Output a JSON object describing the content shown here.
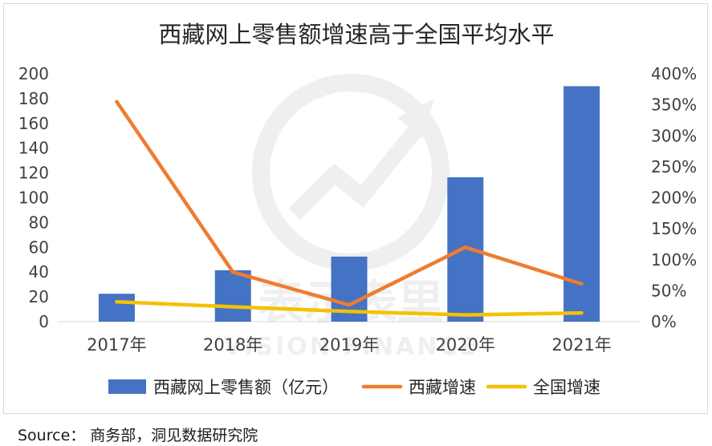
{
  "chart_data": {
    "type": "bar+line",
    "title": "西藏网上零售额增速高于全国平均水平",
    "categories": [
      "2017年",
      "2018年",
      "2019年",
      "2020年",
      "2021年"
    ],
    "series": [
      {
        "name": "西藏网上零售额（亿元）",
        "type": "bar",
        "axis": "left",
        "color": "#4472C4",
        "values": [
          22.5,
          41.5,
          52.5,
          116.5,
          190
        ]
      },
      {
        "name": "西藏增速",
        "type": "line",
        "axis": "right",
        "color": "#ED7D31",
        "values": [
          3.55,
          0.8,
          0.27,
          1.2,
          0.61
        ]
      },
      {
        "name": "全国增速",
        "type": "line",
        "axis": "right",
        "color": "#F2C200",
        "values": [
          0.32,
          0.24,
          0.165,
          0.109,
          0.141
        ]
      }
    ],
    "y_left": {
      "min": 0,
      "max": 200,
      "step": 20,
      "ticks": [
        "0",
        "20",
        "40",
        "60",
        "80",
        "100",
        "120",
        "140",
        "160",
        "180",
        "200"
      ]
    },
    "y_right": {
      "min": 0,
      "max": 4,
      "step": 0.5,
      "ticks": [
        "0%",
        "50%",
        "100%",
        "150%",
        "200%",
        "250%",
        "300%",
        "350%",
        "400%"
      ]
    },
    "legend_position": "bottom",
    "gridlines": false,
    "watermark": {
      "cn": "表示表里",
      "en": "VISION FINANCE"
    }
  },
  "source": "Source：  商务部，洞见数据研究院"
}
